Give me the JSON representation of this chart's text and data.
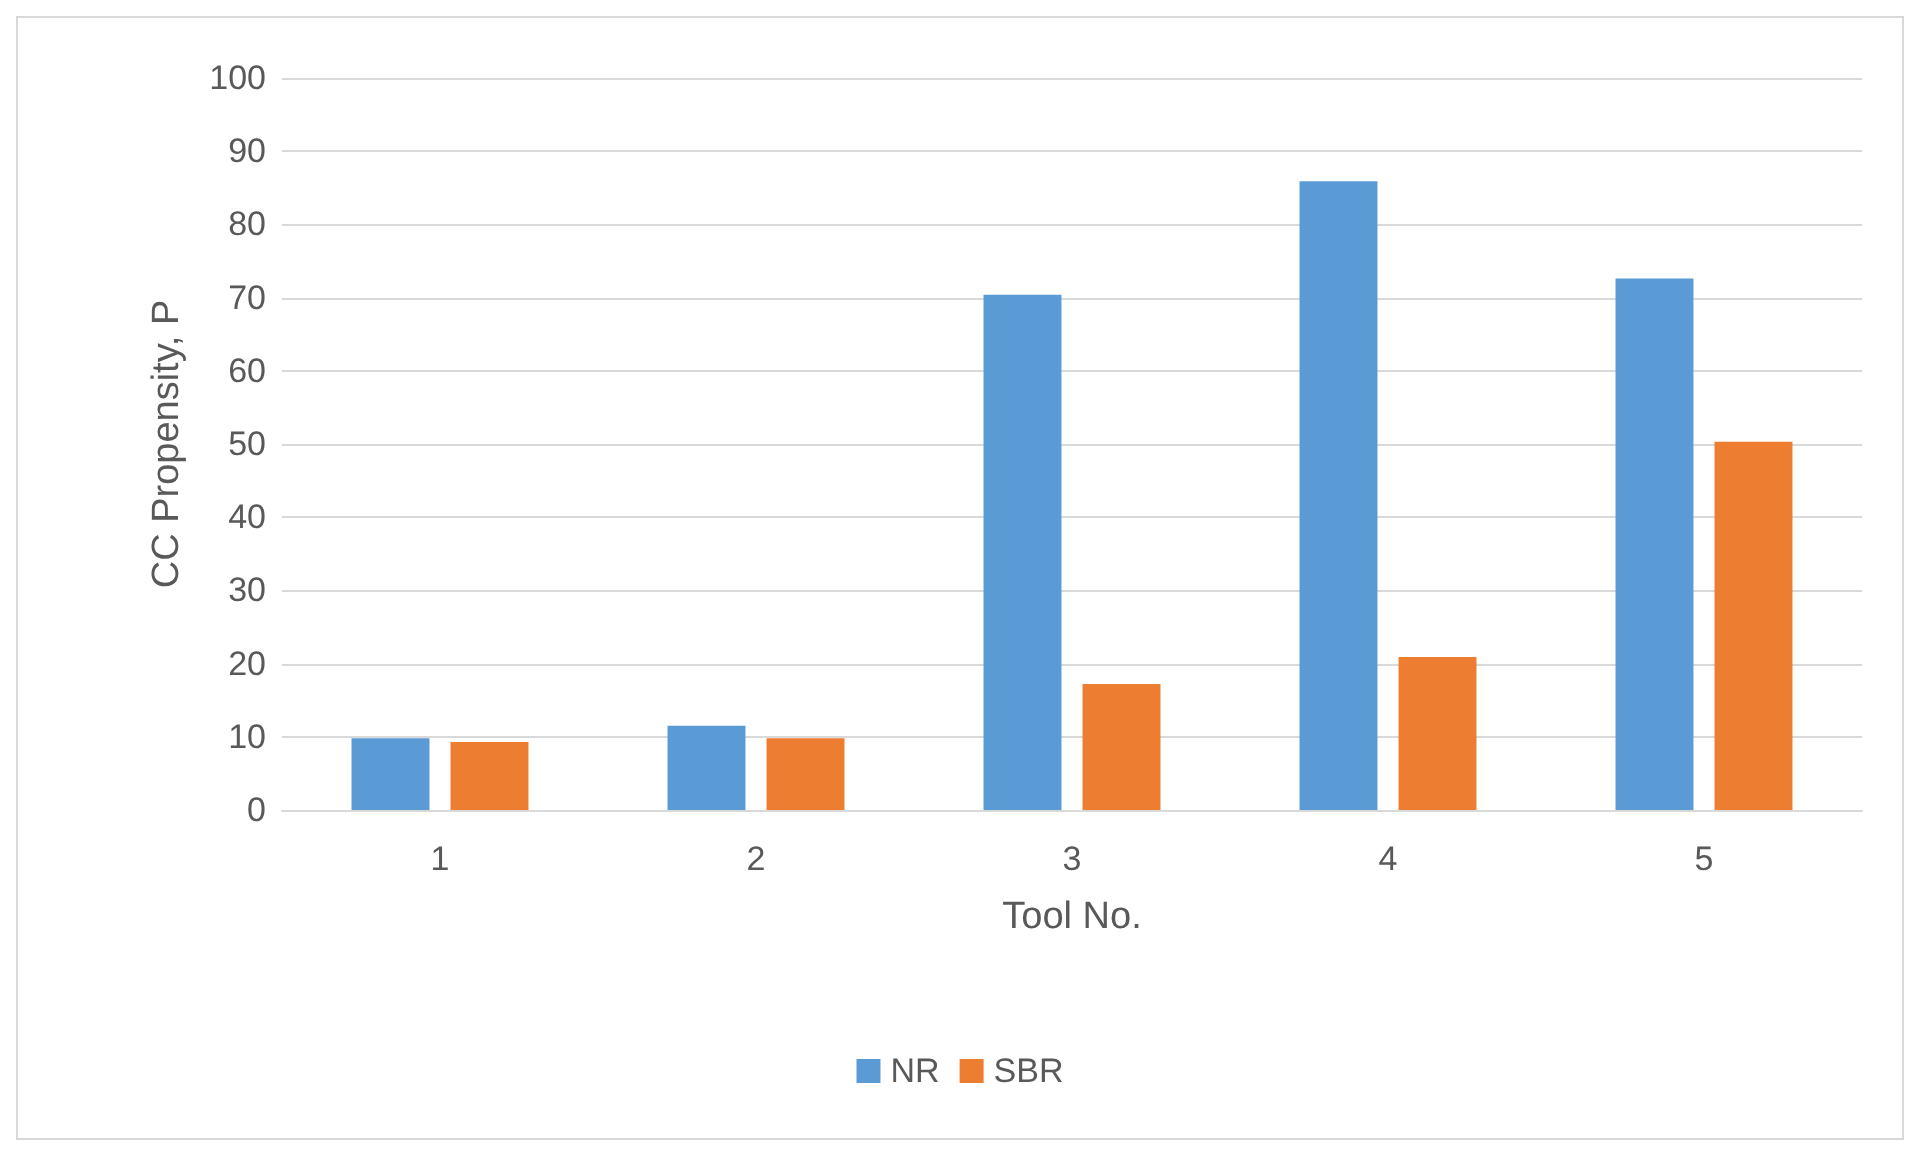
{
  "chart_data": {
    "type": "bar",
    "xlabel": "Tool No.",
    "ylabel": "CC Propensity, P",
    "categories": [
      "1",
      "2",
      "3",
      "4",
      "5"
    ],
    "series": [
      {
        "name": "NR",
        "color": "#5b9bd5",
        "values": [
          9.8,
          11.5,
          70.4,
          85.9,
          72.6
        ]
      },
      {
        "name": "SBR",
        "color": "#ed7d31",
        "values": [
          9.3,
          9.8,
          17.2,
          20.9,
          50.3
        ]
      }
    ],
    "ylim": [
      0,
      100
    ],
    "yticks": [
      0,
      10,
      20,
      30,
      40,
      50,
      60,
      70,
      80,
      90,
      100
    ],
    "grid": "y",
    "legend": "bottom"
  }
}
